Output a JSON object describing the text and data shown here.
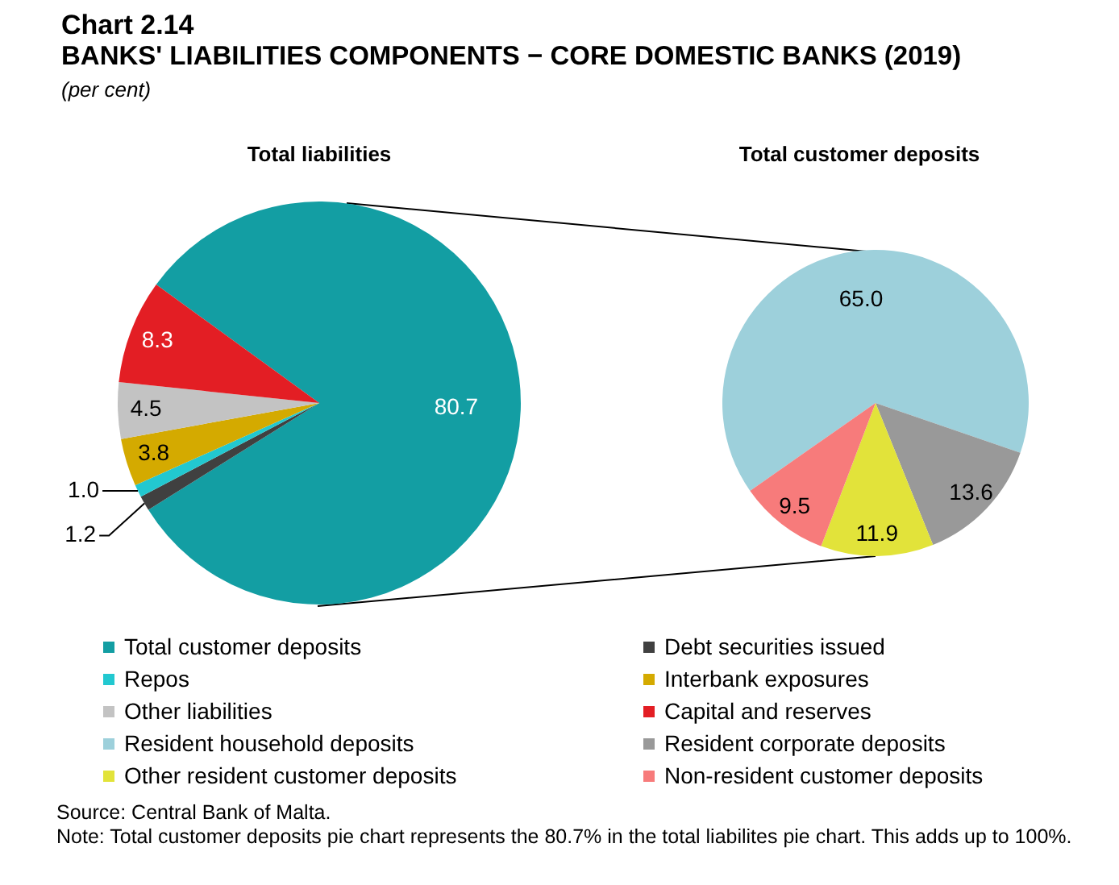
{
  "chart_data": [
    {
      "type": "pie",
      "title": "Total liabilities",
      "categories": [
        "Total customer deposits",
        "Debt securities issued",
        "Repos",
        "Interbank exposures",
        "Other liabilities",
        "Capital and reserves"
      ],
      "values": [
        80.7,
        1.2,
        1.0,
        3.8,
        4.5,
        8.3
      ],
      "colors": [
        "#139ea3",
        "#404040",
        "#22c8d0",
        "#d4aa00",
        "#c3c3c3",
        "#e31e24"
      ],
      "value_labels": [
        "80.7",
        "1.2",
        "1.0",
        "3.8",
        "4.5",
        "8.3"
      ],
      "legend": "bottom",
      "annotations": [
        "Chart 2.14",
        "BANKS' LIABILITIES COMPONENTS − CORE DOMESTIC BANKS (2019)",
        "(per cent)",
        "Source: Central Bank of Malta.",
        "Note: Total customer deposits pie chart represents the 80.7% in the total liabilites pie chart. This adds up to 100%."
      ]
    },
    {
      "type": "pie",
      "title": "Total customer deposits",
      "categories": [
        "Resident household deposits",
        "Resident corporate deposits",
        "Other resident customer deposits",
        "Non-resident customer deposits"
      ],
      "values": [
        65.0,
        13.6,
        11.9,
        9.5
      ],
      "colors": [
        "#9dd0db",
        "#999999",
        "#e2e33a",
        "#f77b7b"
      ],
      "value_labels": [
        "65.0",
        "13.6",
        "11.9",
        "9.5"
      ],
      "legend": "bottom"
    }
  ]
}
